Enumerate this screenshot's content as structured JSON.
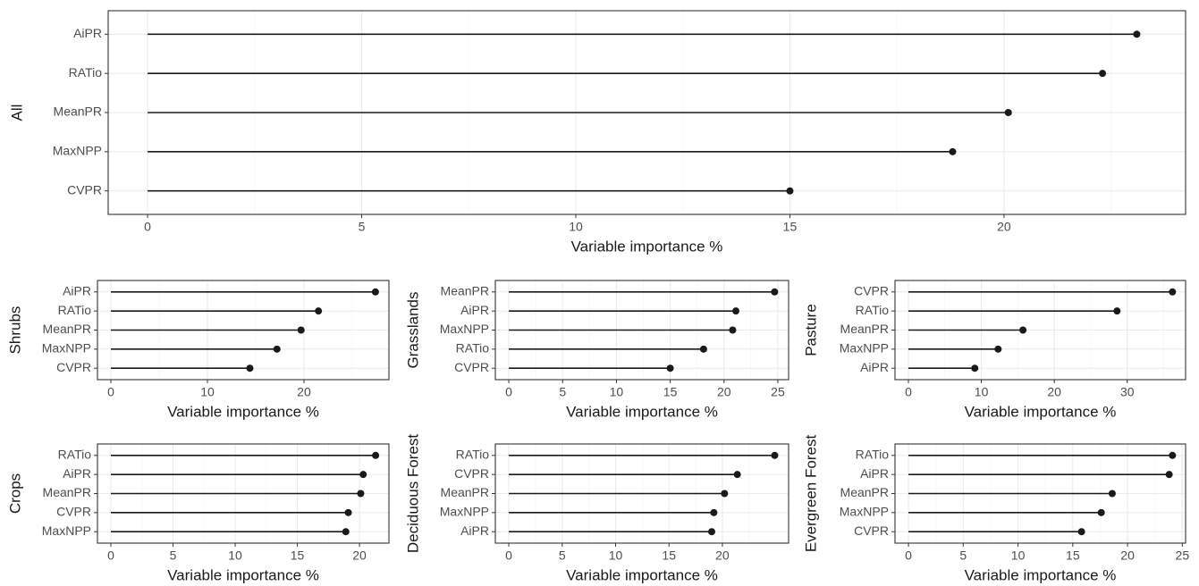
{
  "chart_data": [
    {
      "type": "lollipop",
      "ylabel": "All",
      "xlabel": "Variable importance %",
      "categories": [
        "AiPR",
        "RATio",
        "MeanPR",
        "MaxNPP",
        "CVPR"
      ],
      "values": [
        23.1,
        22.3,
        20.1,
        18.8,
        15.0
      ],
      "xlim": [
        -0.92,
        24.24
      ],
      "xticks": [
        0,
        5,
        10,
        15,
        20
      ],
      "grid": true,
      "color": "#1a1a1a"
    },
    {
      "type": "lollipop",
      "ylabel": "Shrubs",
      "xlabel": "Variable importance %",
      "categories": [
        "AiPR",
        "RATio",
        "MeanPR",
        "MaxNPP",
        "CVPR"
      ],
      "values": [
        27.4,
        21.5,
        19.7,
        17.2,
        14.4
      ],
      "xlim": [
        -1.39,
        28.8
      ],
      "xticks": [
        0,
        10,
        20
      ],
      "grid": true,
      "color": "#1a1a1a"
    },
    {
      "type": "lollipop",
      "ylabel": "Grasslands",
      "xlabel": "Variable importance %",
      "categories": [
        "MeanPR",
        "AiPR",
        "MaxNPP",
        "RATio",
        "CVPR"
      ],
      "values": [
        24.7,
        21.1,
        20.8,
        18.1,
        15.0
      ],
      "xlim": [
        -1.25,
        26.0
      ],
      "xticks": [
        0,
        5,
        10,
        15,
        20,
        25
      ],
      "grid": true,
      "color": "#1a1a1a"
    },
    {
      "type": "lollipop",
      "ylabel": "Pasture",
      "xlabel": "Variable importance %",
      "categories": [
        "CVPR",
        "RATio",
        "MeanPR",
        "MaxNPP",
        "AiPR"
      ],
      "values": [
        36.2,
        28.6,
        15.7,
        12.3,
        9.1
      ],
      "xlim": [
        -1.84,
        38.0
      ],
      "xticks": [
        0,
        10,
        20,
        30
      ],
      "grid": true,
      "color": "#1a1a1a"
    },
    {
      "type": "lollipop",
      "ylabel": "Crops",
      "xlabel": "Variable importance %",
      "categories": [
        "RATio",
        "AiPR",
        "MeanPR",
        "CVPR",
        "MaxNPP"
      ],
      "values": [
        21.3,
        20.3,
        20.1,
        19.1,
        18.9
      ],
      "xlim": [
        -1.08,
        22.37
      ],
      "xticks": [
        0,
        5,
        10,
        15,
        20
      ],
      "grid": true,
      "color": "#1a1a1a"
    },
    {
      "type": "lollipop",
      "ylabel": "Deciduous Forest",
      "xlabel": "Variable importance %",
      "categories": [
        "RATio",
        "CVPR",
        "MeanPR",
        "MaxNPP",
        "AiPR"
      ],
      "values": [
        24.9,
        21.4,
        20.2,
        19.2,
        19.0
      ],
      "xlim": [
        -1.26,
        26.2
      ],
      "xticks": [
        0,
        5,
        10,
        15,
        20
      ],
      "grid": true,
      "color": "#1a1a1a"
    },
    {
      "type": "lollipop",
      "ylabel": "Evergreen Forest",
      "xlabel": "Variable importance %",
      "categories": [
        "RATio",
        "AiPR",
        "MeanPR",
        "MaxNPP",
        "CVPR"
      ],
      "values": [
        24.1,
        23.8,
        18.6,
        17.6,
        15.8
      ],
      "xlim": [
        -1.23,
        25.3
      ],
      "xticks": [
        0,
        5,
        10,
        15,
        20,
        25
      ],
      "grid": true,
      "color": "#1a1a1a"
    }
  ]
}
